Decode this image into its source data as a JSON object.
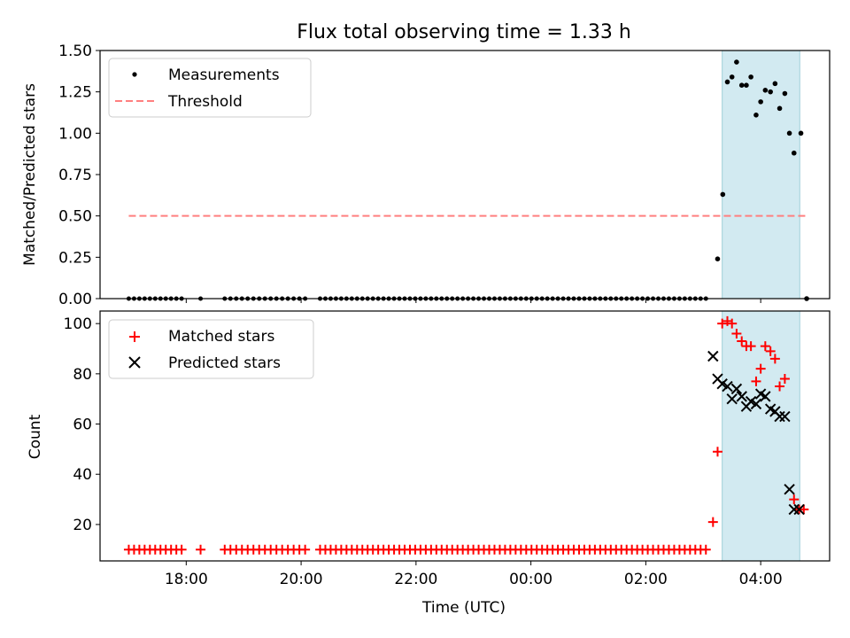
{
  "chart_data": [
    {
      "type": "scatter",
      "title": "Flux total observing time = 1.33 h",
      "xlabel": "",
      "ylabel": "Matched/Predicted stars",
      "xlim_hours": [
        16.5,
        29.2
      ],
      "ylim": [
        0,
        1.5
      ],
      "yticks": [
        0.0,
        0.25,
        0.5,
        0.75,
        1.0,
        1.25,
        1.5
      ],
      "ytick_labels": [
        "0.00",
        "0.25",
        "0.50",
        "0.75",
        "1.00",
        "1.25",
        "1.50"
      ],
      "legend": {
        "location": "upper-left",
        "entries": [
          {
            "label": "Measurements",
            "marker": "dot",
            "color": "#000000"
          },
          {
            "label": "Threshold",
            "marker": "dashed-line",
            "color": "#ff7f7f"
          }
        ]
      },
      "highlight_span_hours": [
        27.33,
        28.68
      ],
      "threshold": {
        "value": 0.5,
        "x_range_hours": [
          17.0,
          28.82
        ]
      },
      "series": [
        {
          "name": "Measurements",
          "zero_ranges": [
            [
              17.0,
              17.92,
              0.092
            ],
            [
              18.25,
              18.25,
              1
            ],
            [
              18.67,
              20.1,
              0.1
            ],
            [
              20.33,
              27.1,
              0.092
            ]
          ],
          "points": [
            [
              27.25,
              0.24
            ],
            [
              27.34,
              0.63
            ],
            [
              27.42,
              1.31
            ],
            [
              27.5,
              1.34
            ],
            [
              27.58,
              1.43
            ],
            [
              27.67,
              1.29
            ],
            [
              27.75,
              1.29
            ],
            [
              27.83,
              1.34
            ],
            [
              27.92,
              1.11
            ],
            [
              28.0,
              1.19
            ],
            [
              28.08,
              1.26
            ],
            [
              28.17,
              1.25
            ],
            [
              28.25,
              1.3
            ],
            [
              28.33,
              1.15
            ],
            [
              28.42,
              1.24
            ],
            [
              28.5,
              1.0
            ],
            [
              28.58,
              0.88
            ],
            [
              28.7,
              1.0
            ],
            [
              28.8,
              0.0
            ]
          ]
        }
      ]
    },
    {
      "type": "scatter",
      "title": "",
      "xlabel": "Time (UTC)",
      "ylabel": "Count",
      "xlim_hours": [
        16.5,
        29.2
      ],
      "ylim": [
        5.5,
        105
      ],
      "yticks": [
        20,
        40,
        60,
        80,
        100
      ],
      "ytick_labels": [
        "20",
        "40",
        "60",
        "80",
        "100"
      ],
      "xticks_hours": [
        18,
        20,
        22,
        24,
        26,
        28
      ],
      "xtick_labels": [
        "18:00",
        "20:00",
        "22:00",
        "00:00",
        "02:00",
        "04:00"
      ],
      "legend": {
        "location": "upper-left",
        "entries": [
          {
            "label": "Matched stars",
            "marker": "plus",
            "color": "#ff0000"
          },
          {
            "label": "Predicted stars",
            "marker": "x",
            "color": "#000000"
          }
        ]
      },
      "highlight_span_hours": [
        27.33,
        28.68
      ],
      "series": [
        {
          "name": "Matched stars",
          "baseline_value": 10,
          "baseline_ranges": [
            [
              17.0,
              17.92,
              0.092
            ],
            [
              18.25,
              18.25,
              1
            ],
            [
              18.67,
              20.1,
              0.1
            ],
            [
              20.33,
              27.1,
              0.092
            ]
          ],
          "points": [
            [
              27.17,
              21
            ],
            [
              27.25,
              49
            ],
            [
              27.33,
              100
            ],
            [
              27.42,
              101
            ],
            [
              27.5,
              100
            ],
            [
              27.58,
              96
            ],
            [
              27.67,
              93
            ],
            [
              27.75,
              91
            ],
            [
              27.83,
              91
            ],
            [
              27.92,
              77
            ],
            [
              28.0,
              82
            ],
            [
              28.08,
              91
            ],
            [
              28.17,
              89
            ],
            [
              28.25,
              86
            ],
            [
              28.33,
              75
            ],
            [
              28.42,
              78
            ],
            [
              28.58,
              30
            ],
            [
              28.67,
              26
            ],
            [
              28.75,
              26
            ]
          ]
        },
        {
          "name": "Predicted stars",
          "points": [
            [
              27.17,
              87
            ],
            [
              27.25,
              78
            ],
            [
              27.33,
              76
            ],
            [
              27.42,
              75
            ],
            [
              27.5,
              70
            ],
            [
              27.58,
              74
            ],
            [
              27.67,
              71
            ],
            [
              27.75,
              67
            ],
            [
              27.83,
              69
            ],
            [
              27.92,
              68
            ],
            [
              28.0,
              72
            ],
            [
              28.08,
              71
            ],
            [
              28.17,
              66
            ],
            [
              28.25,
              65
            ],
            [
              28.33,
              63
            ],
            [
              28.42,
              63
            ],
            [
              28.5,
              34
            ],
            [
              28.58,
              26
            ],
            [
              28.67,
              26
            ]
          ]
        }
      ]
    }
  ]
}
